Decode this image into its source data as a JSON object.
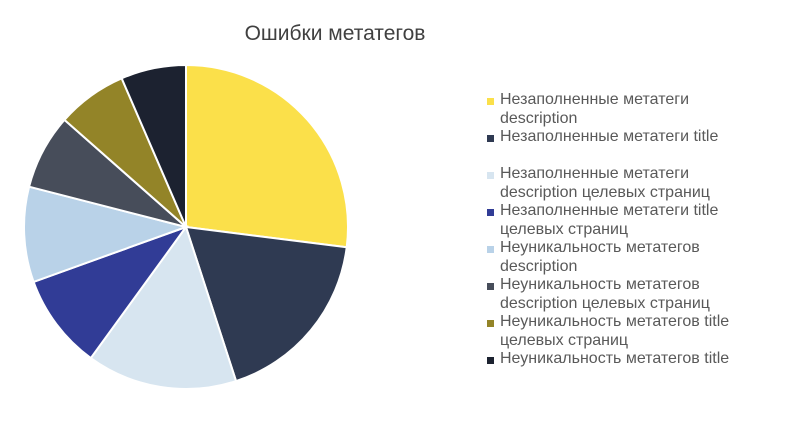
{
  "chart_data": {
    "type": "pie",
    "title": "Ошибки метатегов",
    "legend_position": "right",
    "slices": [
      {
        "label": "Незаполненные метатеги description",
        "value": 27,
        "color": "#FBE04A"
      },
      {
        "label": "Незаполненные метатеги title",
        "value": 18,
        "color": "#2F3A52"
      },
      {
        "label": "Незаполненные метатеги description целевых страниц",
        "value": 15,
        "color": "#D7E5F0"
      },
      {
        "label": "Незаполненные метатеги title целевых страниц",
        "value": 9.5,
        "color": "#313C96"
      },
      {
        "label": "Неуникальность метатегов description",
        "value": 9.5,
        "color": "#B9D2E8"
      },
      {
        "label": "Неуникальность метатегов description целевых страниц",
        "value": 7.5,
        "color": "#474D5A"
      },
      {
        "label": "Неуникальность метатегов title целевых страниц",
        "value": 7,
        "color": "#938428"
      },
      {
        "label": "Неуникальность метатегов title",
        "value": 6.5,
        "color": "#1C2230"
      }
    ]
  }
}
